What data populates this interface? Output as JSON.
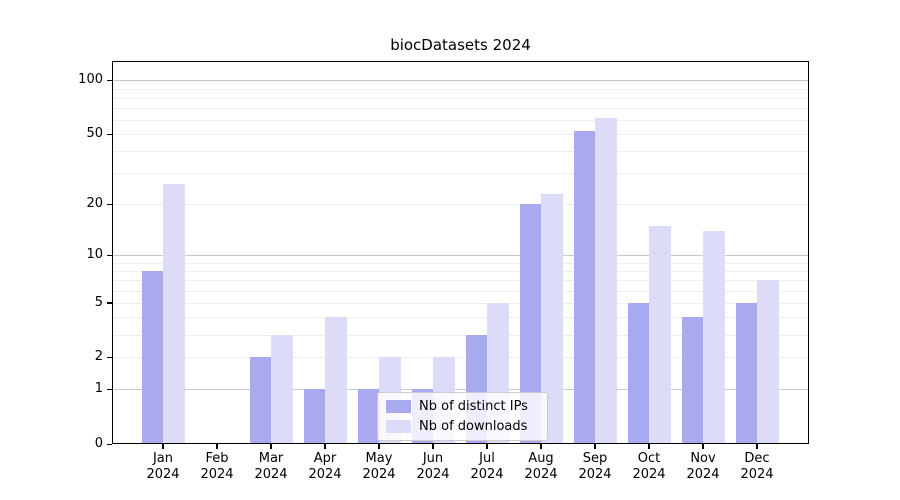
{
  "title": "biocDatasets 2024",
  "chart_data": {
    "type": "bar",
    "title": "biocDatasets 2024",
    "categories": [
      "Jan 2024",
      "Feb 2024",
      "Mar 2024",
      "Apr 2024",
      "May 2024",
      "Jun 2024",
      "Jul 2024",
      "Aug 2024",
      "Sep 2024",
      "Oct 2024",
      "Nov 2024",
      "Dec 2024"
    ],
    "series": [
      {
        "name": "Nb of distinct IPs",
        "color": "#a9a9f0",
        "values": [
          8,
          0,
          2,
          1,
          1,
          1,
          3,
          20,
          52,
          5,
          4,
          5
        ]
      },
      {
        "name": "Nb of downloads",
        "color": "#dcdcf8",
        "values": [
          26,
          0,
          3,
          4,
          2,
          2,
          5,
          23,
          62,
          15,
          14,
          7
        ]
      }
    ],
    "xlabel": "",
    "ylabel": "",
    "yscale": "log1p",
    "ylim": [
      0,
      128
    ],
    "yticks": [
      0,
      1,
      2,
      5,
      10,
      20,
      50,
      100
    ],
    "major_gridlines": [
      1,
      10,
      100
    ],
    "minor_gridlines": [
      2,
      3,
      4,
      5,
      6,
      7,
      8,
      9,
      20,
      30,
      40,
      50,
      60,
      70,
      80,
      90
    ],
    "grid": "horizontal",
    "legend_position": "bottom-center"
  },
  "legend": {
    "entries": [
      {
        "label": "Nb of distinct IPs"
      },
      {
        "label": "Nb of downloads"
      }
    ]
  }
}
